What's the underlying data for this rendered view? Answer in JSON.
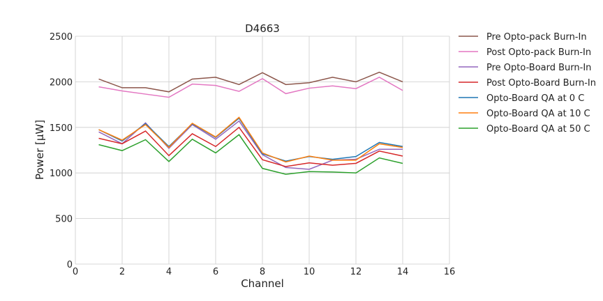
{
  "chart_data": {
    "type": "line",
    "title": "D4663",
    "xlabel": "Channel",
    "ylabel": "Power [μW]",
    "xlim": [
      0,
      16
    ],
    "ylim": [
      0,
      2500
    ],
    "xticks": [
      0,
      2,
      4,
      6,
      8,
      10,
      12,
      14,
      16
    ],
    "yticks": [
      0,
      500,
      1000,
      1500,
      2000,
      2500
    ],
    "grid": true,
    "legend_position": "outside-right-top",
    "x": [
      1,
      2,
      3,
      4,
      5,
      6,
      7,
      8,
      9,
      10,
      11,
      12,
      13,
      14
    ],
    "series": [
      {
        "name": "Pre Opto-pack Burn-In",
        "color": "#8c564b",
        "values": [
          2030,
          1935,
          1935,
          1890,
          2030,
          2050,
          1970,
          2100,
          1970,
          1990,
          2050,
          2000,
          2105,
          2000
        ]
      },
      {
        "name": "Post Opto-pack Burn-In",
        "color": "#e377c2",
        "values": [
          1945,
          1900,
          1865,
          1830,
          1975,
          1960,
          1895,
          2035,
          1870,
          1930,
          1955,
          1925,
          2050,
          1905
        ]
      },
      {
        "name": "Pre Opto-Board Burn-In",
        "color": "#9467bd",
        "values": [
          1450,
          1320,
          1550,
          1270,
          1530,
          1370,
          1570,
          1200,
          1060,
          1040,
          1140,
          1150,
          1260,
          1260
        ]
      },
      {
        "name": "Post Opto-Board Burn-In",
        "color": "#d62728",
        "values": [
          1380,
          1320,
          1460,
          1190,
          1430,
          1290,
          1500,
          1145,
          1070,
          1110,
          1085,
          1105,
          1240,
          1185
        ]
      },
      {
        "name": "Opto-Board QA at 0 C",
        "color": "#1f77b4",
        "values": [
          1475,
          1350,
          1540,
          1290,
          1540,
          1390,
          1600,
          1210,
          1130,
          1180,
          1150,
          1180,
          1335,
          1290
        ]
      },
      {
        "name": "Opto-Board QA at 10 C",
        "color": "#ff7f0e",
        "values": [
          1475,
          1360,
          1530,
          1280,
          1545,
          1395,
          1610,
          1220,
          1120,
          1185,
          1140,
          1140,
          1320,
          1280
        ]
      },
      {
        "name": "Opto-Board QA at 50 C",
        "color": "#2ca02c",
        "values": [
          1310,
          1245,
          1365,
          1125,
          1370,
          1220,
          1420,
          1050,
          985,
          1015,
          1010,
          1000,
          1165,
          1105
        ]
      }
    ]
  }
}
